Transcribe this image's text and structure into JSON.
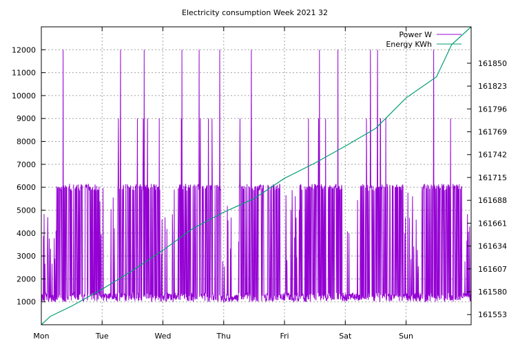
{
  "chart_data": {
    "type": "line",
    "title": "Electricity consumption Week 2021 32",
    "xlabel": "",
    "ylabel": "",
    "x_tick_labels": [
      "Mon",
      "Tue",
      "Wed",
      "Thu",
      "Fri",
      "Sat",
      "Sun"
    ],
    "xlim": [
      0,
      7.07
    ],
    "y_left": {
      "ticks": [
        1000,
        2000,
        3000,
        4000,
        5000,
        6000,
        7000,
        8000,
        9000,
        10000,
        11000,
        12000
      ],
      "ylim": [
        0,
        13000
      ]
    },
    "y_right": {
      "ticks": [
        161553,
        161580,
        161607,
        161634,
        161661,
        161688,
        161715,
        161742,
        161769,
        161796,
        161823,
        161850
      ],
      "ylim": [
        161541,
        161893
      ]
    },
    "grid": true,
    "legend_position": "top-right",
    "series": [
      {
        "name": "Power W",
        "axis": "left",
        "color": "#9400d3",
        "baseline_w": 1200,
        "typical_peak_w": 6000,
        "high_peaks_w": [
          9000,
          12000
        ],
        "peak_days": [
          0,
          1,
          2,
          3,
          4,
          5,
          6
        ]
      },
      {
        "name": "Energy KWh",
        "axis": "right",
        "color": "#009e73",
        "x": [
          0,
          0.15,
          0.5,
          1,
          1.5,
          2,
          2.5,
          3,
          3.5,
          4,
          4.5,
          5,
          5.5,
          6,
          6.5,
          6.75,
          7.07
        ],
        "values": [
          161541,
          161551,
          161563,
          161583,
          161605,
          161629,
          161655,
          161674,
          161690,
          161714,
          161732,
          161752,
          161773,
          161809,
          161834,
          161872,
          161893
        ]
      }
    ]
  }
}
